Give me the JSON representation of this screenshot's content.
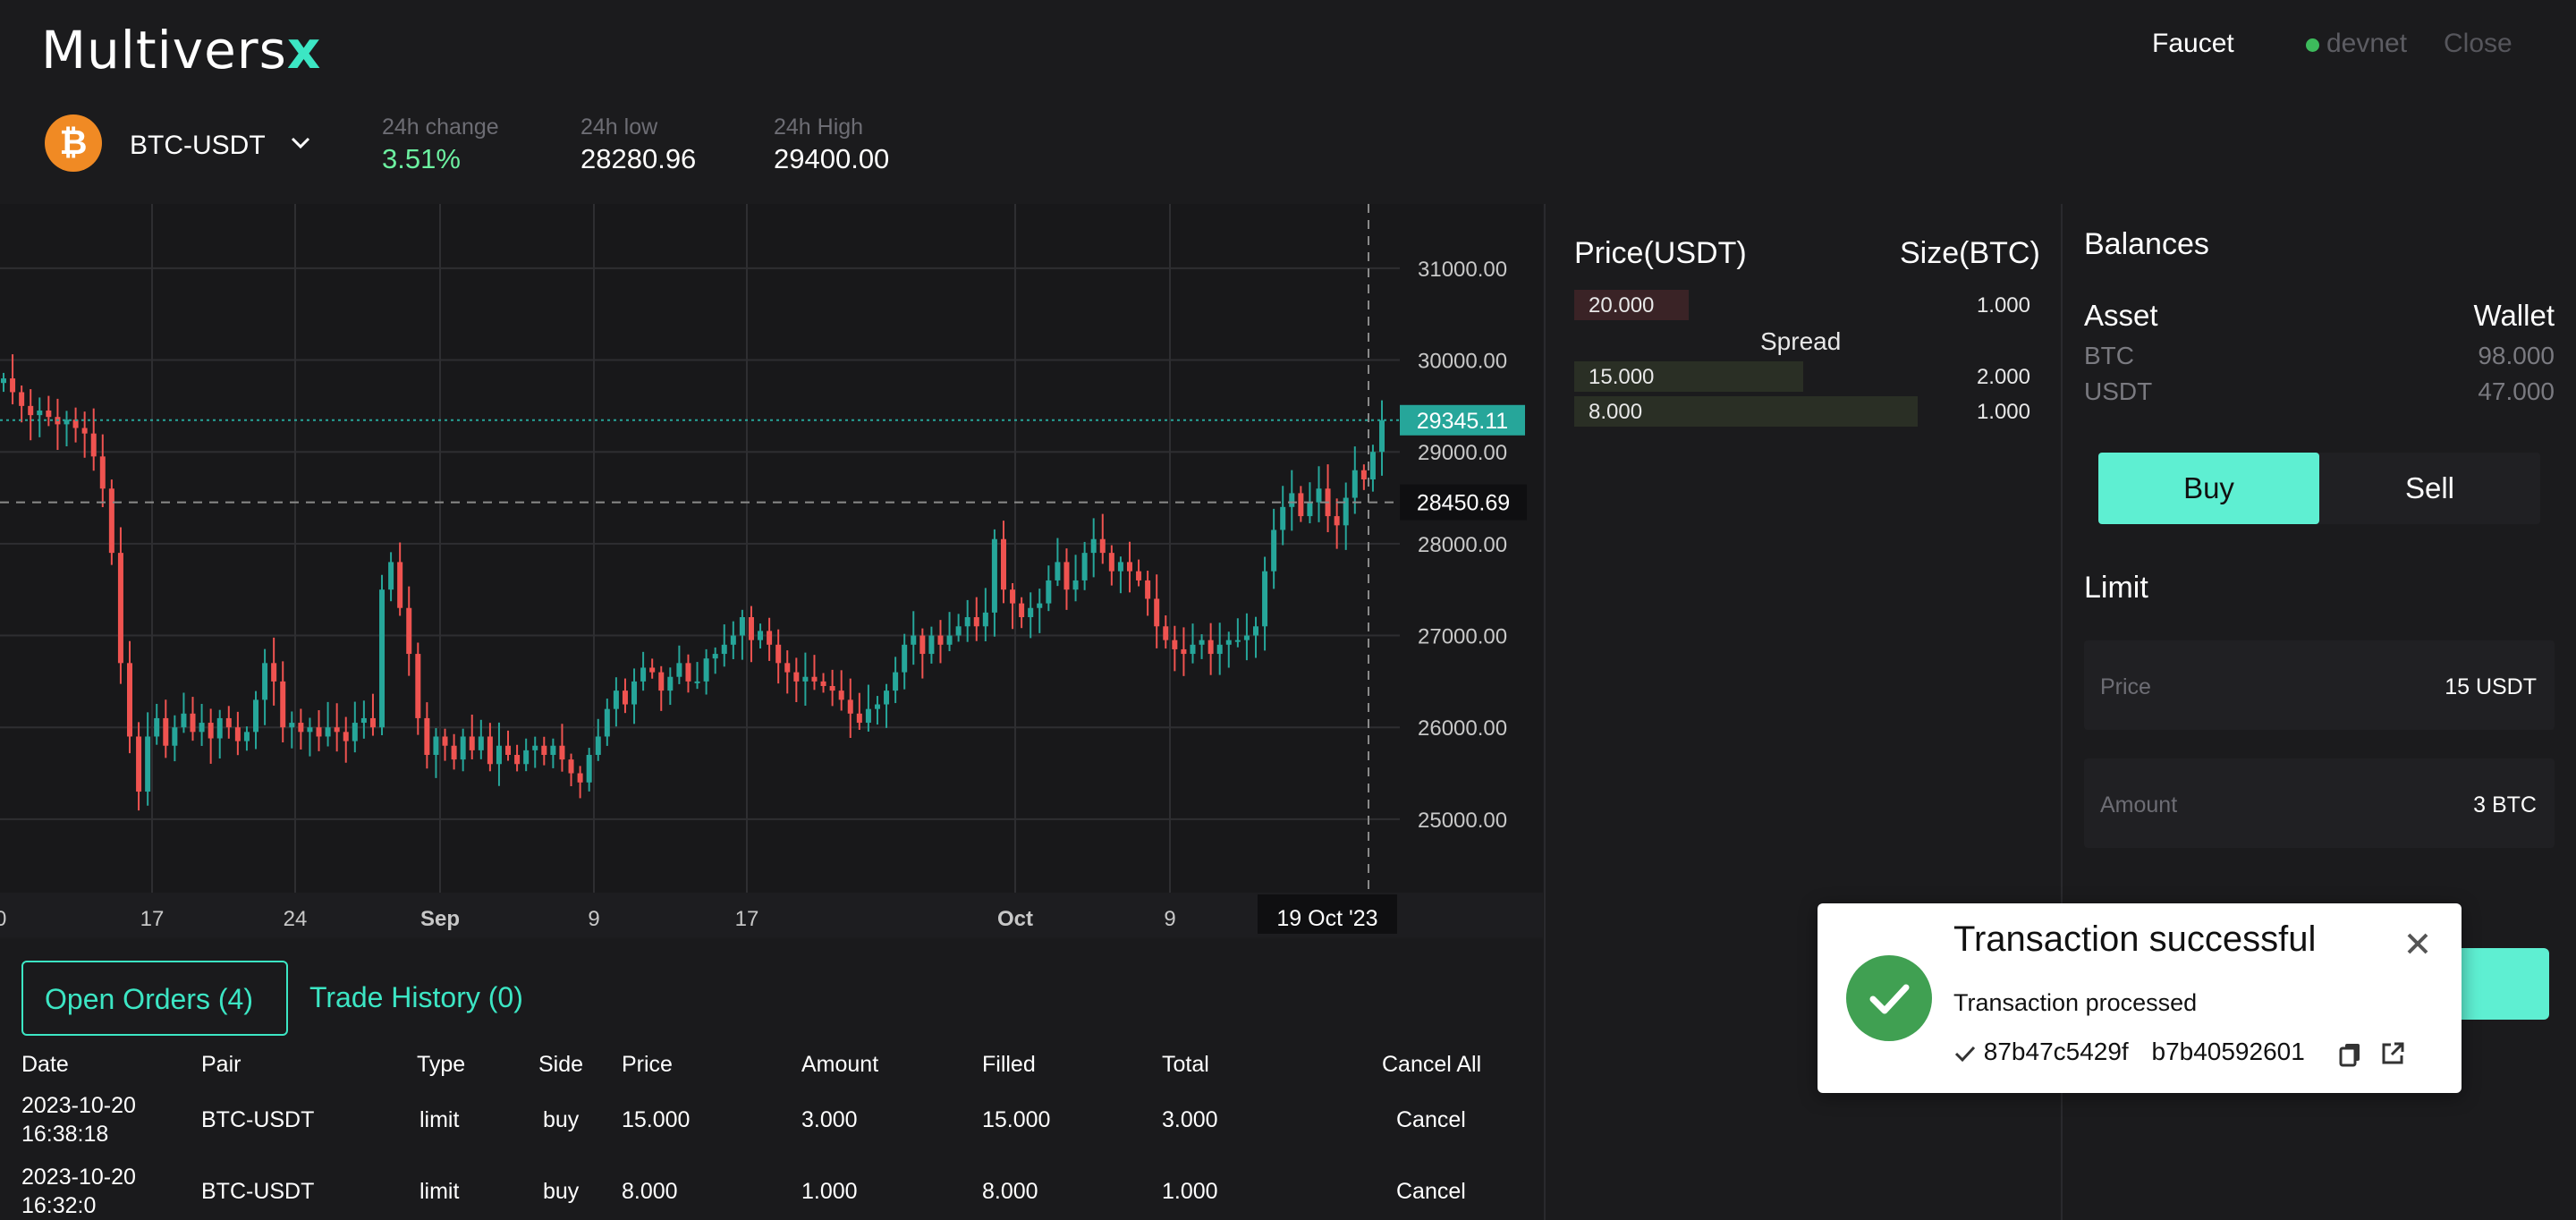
{
  "header": {
    "logo_main": "Multivers",
    "logo_x": "x",
    "faucet": "Faucet",
    "network": "devnet",
    "close": "Close"
  },
  "market": {
    "coin_symbol": "₿",
    "pair": "BTC-USDT",
    "change_label": "24h change",
    "change_value": "3.51%",
    "low_label": "24h low",
    "low_value": "28280.96",
    "high_label": "24h High",
    "high_value": "29400.00"
  },
  "chart_data": {
    "type": "candlestick",
    "y_ticks": [
      "31000.00",
      "30000.00",
      "29000.00",
      "28000.00",
      "27000.00",
      "26000.00",
      "25000.00"
    ],
    "x_ticks": [
      "17",
      "24",
      "Sep",
      "9",
      "17",
      "Oct",
      "9"
    ],
    "x_tick_first": "0",
    "crosshair_x_label": "19 Oct '23",
    "last_price_label": "29345.11",
    "crosshair_y_label": "28450.69",
    "ylim": [
      24200,
      31700
    ],
    "colors": {
      "up": "#26a69a",
      "down": "#ef5350"
    },
    "close_series": [
      29800,
      29650,
      29500,
      29400,
      29450,
      29380,
      29300,
      29350,
      29260,
      29200,
      28950,
      28600,
      27900,
      26700,
      25900,
      25300,
      25900,
      26100,
      25800,
      26000,
      26150,
      25950,
      26050,
      25880,
      26100,
      26000,
      25850,
      25950,
      26300,
      26700,
      26500,
      26000,
      26050,
      25950,
      26000,
      25900,
      26000,
      25950,
      25850,
      26050,
      26100,
      26000,
      27500,
      27800,
      27300,
      26800,
      26100,
      25700,
      25900,
      25800,
      25650,
      25900,
      25750,
      25900,
      25600,
      25800,
      25700,
      25600,
      25750,
      25800,
      25700,
      25800,
      25650,
      25500,
      25400,
      25700,
      25900,
      26200,
      26400,
      26250,
      26500,
      26650,
      26600,
      26400,
      26550,
      26700,
      26500,
      26500,
      26750,
      26800,
      26900,
      27000,
      27200,
      26950,
      27050,
      26900,
      26700,
      26600,
      26500,
      26550,
      26500,
      26450,
      26400,
      26300,
      26150,
      26050,
      26200,
      26250,
      26400,
      26600,
      26900,
      27000,
      26800,
      27000,
      26900,
      27000,
      27100,
      27200,
      27100,
      27250,
      28050,
      27500,
      27350,
      27200,
      27300,
      27350,
      27600,
      27800,
      27500,
      27600,
      27900,
      28050,
      27900,
      27700,
      27800,
      27700,
      27600,
      27400,
      27100,
      26950,
      26850,
      26800,
      26900,
      26950,
      26800,
      26900,
      26950,
      26950,
      27000,
      27100,
      27700,
      28150,
      28400,
      28550,
      28300,
      28450,
      28600,
      28300,
      28200,
      28500,
      28800,
      28700,
      29000,
      29345
    ]
  },
  "orders": {
    "tab_open": "Open Orders (4)",
    "tab_history": "Trade History (0)",
    "headers": {
      "date": "Date",
      "pair": "Pair",
      "type": "Type",
      "side": "Side",
      "price": "Price",
      "amount": "Amount",
      "filled": "Filled",
      "total": "Total",
      "cancel_all": "Cancel All"
    },
    "rows": [
      {
        "date1": "2023-10-20",
        "date2": "16:38:18",
        "pair": "BTC-USDT",
        "type": "limit",
        "side": "buy",
        "price": "15.000",
        "amount": "3.000",
        "filled": "15.000",
        "total": "3.000",
        "action": "Cancel"
      },
      {
        "date1": "2023-10-20",
        "date2": "16:32:0",
        "pair": "BTC-USDT",
        "type": "limit",
        "side": "buy",
        "price": "8.000",
        "amount": "1.000",
        "filled": "8.000",
        "total": "1.000",
        "action": "Cancel"
      }
    ]
  },
  "orderbook": {
    "price_header": "Price(USDT)",
    "size_header": "Size(BTC)",
    "asks": [
      {
        "price": "20.000",
        "size": "1.000",
        "depth": 0.25
      }
    ],
    "spread": "Spread",
    "bids": [
      {
        "price": "15.000",
        "size": "2.000",
        "depth": 0.5
      },
      {
        "price": "8.000",
        "size": "1.000",
        "depth": 0.75
      }
    ]
  },
  "balances": {
    "title": "Balances",
    "asset_header": "Asset",
    "wallet_header": "Wallet",
    "rows": [
      {
        "asset": "BTC",
        "wallet": "98.000"
      },
      {
        "asset": "USDT",
        "wallet": "47.000"
      }
    ]
  },
  "trade": {
    "buy": "Buy",
    "sell": "Sell",
    "limit": "Limit",
    "price_label": "Price",
    "price_value": "15 USDT",
    "amount_label": "Amount",
    "amount_value": "3 BTC"
  },
  "toast": {
    "title": "Transaction successful",
    "message": "Transaction processed",
    "hash1": "87b47c5429f",
    "hash2": "b7b40592601"
  }
}
